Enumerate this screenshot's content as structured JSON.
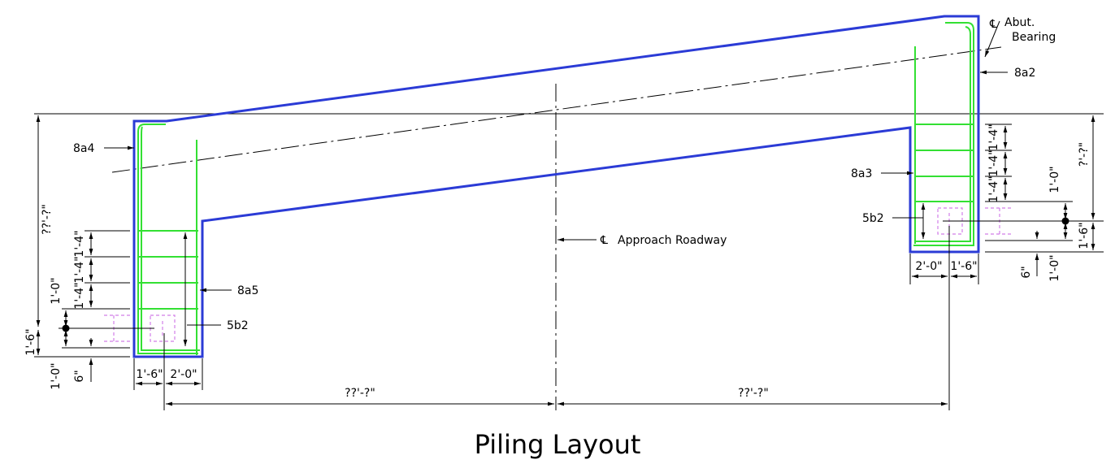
{
  "title": "Piling Layout",
  "centerline_symbol": "℄",
  "centerlines": {
    "abutment": [
      "Abut.",
      "Bearing"
    ],
    "roadway": "Approach Roadway"
  },
  "callouts": {
    "left": [
      "8a4",
      "8a5",
      "5b2"
    ],
    "right": [
      "8a2",
      "8a3",
      "5b2"
    ]
  },
  "dimensions": {
    "left": {
      "overall_height": "??'-?\"",
      "bar_spacing": [
        "1'-4\"",
        "1'-4\"",
        "1'-4\""
      ],
      "pile_height": "1'-0\"",
      "bottom_to_pile": "1'-6\"",
      "pile_below": "1'-0\"",
      "pile_embed": "6\"",
      "widths": [
        "1'-6\"",
        "2'-0\""
      ]
    },
    "right": {
      "overall_height": "?'-?\"",
      "bar_spacing": [
        "1'-4\"",
        "1'-4\"",
        "1'-4\""
      ],
      "pile_height": "1'-0\"",
      "bottom_to_pile": "1'-6\"",
      "pile_below": "1'-0\"",
      "pile_embed": "6\"",
      "widths": [
        "2'-0\"",
        "1'-6\""
      ]
    },
    "spans": [
      "??'-?\"",
      "??'-?\""
    ]
  }
}
